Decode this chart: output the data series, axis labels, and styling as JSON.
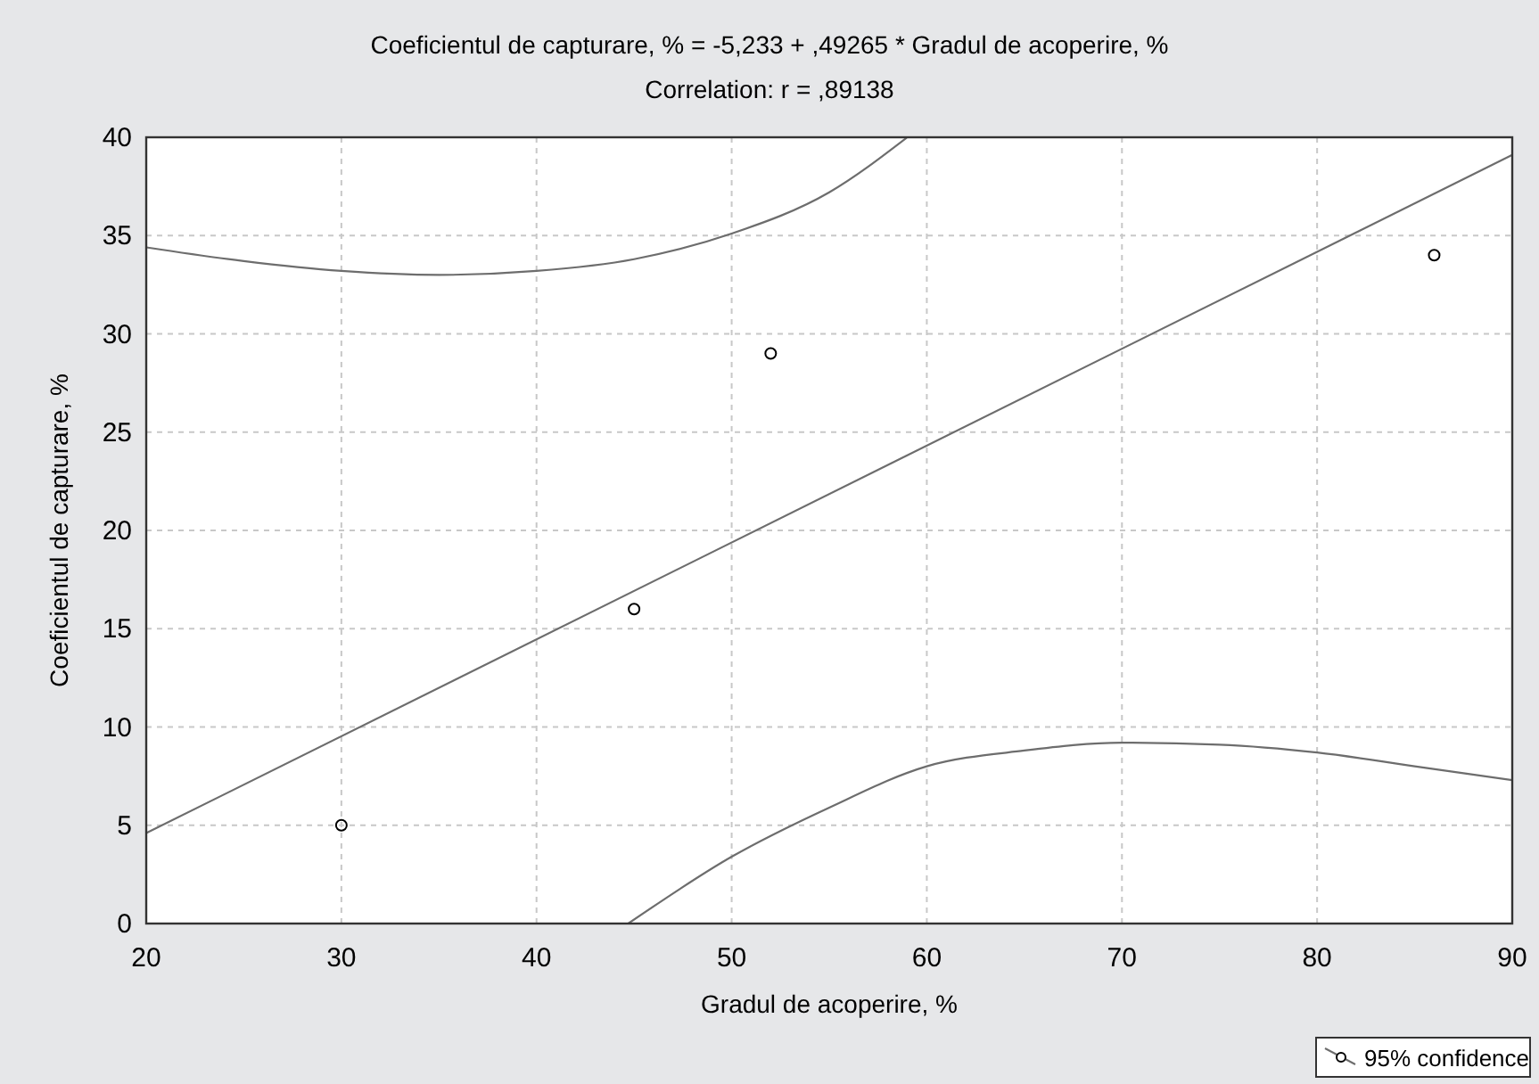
{
  "chart_data": {
    "type": "scatter",
    "title": "Coeficientul de capturare, % = -5,233 + ,49265 * Gradul de acoperire, %",
    "subtitle": "Correlation: r = ,89138",
    "xlabel": "Gradul de acoperire, %",
    "ylabel": "Coeficientul de capturare, %",
    "xlim": [
      20,
      90
    ],
    "ylim": [
      0,
      40
    ],
    "xticks": [
      20,
      30,
      40,
      50,
      60,
      70,
      80,
      90
    ],
    "yticks": [
      0,
      5,
      10,
      15,
      20,
      25,
      30,
      35,
      40
    ],
    "grid": true,
    "legend": "bottom right",
    "series": [
      {
        "marker": "circle",
        "color": "#000000",
        "x": [
          30,
          45,
          52,
          86
        ],
        "values": [
          5,
          16,
          29,
          34
        ]
      },
      {
        "type": "line",
        "color": "#6d6d6d",
        "x": [
          20,
          90
        ],
        "values": [
          4.6,
          39.1
        ]
      },
      {
        "type": "line",
        "name": "95% confidence",
        "color": "#6d6d6d",
        "x": [
          20,
          25,
          30,
          35,
          40,
          45,
          50,
          55,
          59
        ],
        "values": [
          34.4,
          33.7,
          33.2,
          33.0,
          33.2,
          33.8,
          35.1,
          37.2,
          40
        ]
      },
      {
        "type": "line",
        "color": "#6d6d6d",
        "x": [
          44.7,
          50,
          55,
          60,
          65,
          70,
          75,
          80,
          85,
          90
        ],
        "values": [
          0,
          3.4,
          5.9,
          8.0,
          8.8,
          9.2,
          9.1,
          8.7,
          8.0,
          7.3
        ]
      }
    ]
  }
}
